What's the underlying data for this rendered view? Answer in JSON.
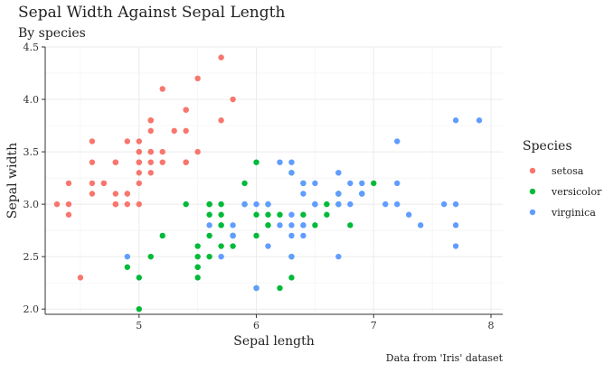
{
  "chart_data": {
    "type": "scatter",
    "title": "Sepal Width Against Sepal Length",
    "subtitle": "By species",
    "caption": "Data from 'Iris' dataset",
    "xlabel": "Sepal length",
    "ylabel": "Sepal width",
    "xlim": [
      4.2,
      8.1
    ],
    "ylim": [
      1.95,
      4.5
    ],
    "xticks": [
      5,
      6,
      7,
      8
    ],
    "yticks": [
      2.0,
      2.5,
      3.0,
      3.5,
      4.0,
      4.5
    ],
    "ytick_labels": [
      "2.0",
      "2.5",
      "3.0",
      "3.5",
      "4.0",
      "4.5"
    ],
    "grid": true,
    "legend_title": "Species",
    "legend_position": "right",
    "series": [
      {
        "name": "setosa",
        "color": "#F8766D",
        "x": [
          5.1,
          4.9,
          4.7,
          4.6,
          5.0,
          5.4,
          4.6,
          5.0,
          4.4,
          4.9,
          5.4,
          4.8,
          4.8,
          4.3,
          5.8,
          5.7,
          5.4,
          5.1,
          5.7,
          5.1,
          5.4,
          5.1,
          4.6,
          5.1,
          4.8,
          5.0,
          5.0,
          5.2,
          5.2,
          4.7,
          4.8,
          5.4,
          5.2,
          5.5,
          4.9,
          5.0,
          5.5,
          4.9,
          4.4,
          5.1,
          5.0,
          4.5,
          4.4,
          5.0,
          5.1,
          4.8,
          5.1,
          4.6,
          5.3,
          5.0
        ],
        "y": [
          3.5,
          3.0,
          3.2,
          3.1,
          3.6,
          3.9,
          3.4,
          3.4,
          2.9,
          3.1,
          3.7,
          3.4,
          3.0,
          3.0,
          4.0,
          4.4,
          3.9,
          3.5,
          3.8,
          3.8,
          3.4,
          3.7,
          3.6,
          3.3,
          3.4,
          3.0,
          3.4,
          3.5,
          3.4,
          3.2,
          3.1,
          3.4,
          4.1,
          4.2,
          3.1,
          3.2,
          3.5,
          3.6,
          3.0,
          3.4,
          3.5,
          2.3,
          3.2,
          3.5,
          3.8,
          3.0,
          3.8,
          3.2,
          3.7,
          3.3
        ]
      },
      {
        "name": "versicolor",
        "color": "#00BA38",
        "x": [
          7.0,
          6.4,
          6.9,
          5.5,
          6.5,
          5.7,
          6.3,
          4.9,
          6.6,
          5.2,
          5.0,
          5.9,
          6.0,
          6.1,
          5.6,
          6.7,
          5.6,
          5.8,
          6.2,
          5.6,
          5.9,
          6.1,
          6.3,
          6.1,
          6.4,
          6.6,
          6.8,
          6.7,
          6.0,
          5.7,
          5.5,
          5.5,
          5.8,
          6.0,
          5.4,
          6.0,
          6.7,
          6.3,
          5.6,
          5.5,
          5.5,
          6.1,
          5.8,
          5.0,
          5.6,
          5.7,
          5.7,
          6.2,
          5.1,
          5.7
        ],
        "y": [
          3.2,
          3.2,
          3.1,
          2.3,
          2.8,
          2.8,
          3.3,
          2.4,
          2.9,
          2.7,
          2.0,
          3.0,
          2.2,
          2.9,
          2.9,
          3.1,
          3.0,
          2.7,
          2.2,
          2.5,
          3.2,
          2.8,
          2.5,
          2.8,
          2.9,
          3.0,
          2.8,
          3.0,
          2.9,
          2.6,
          2.4,
          2.4,
          2.7,
          2.7,
          3.0,
          3.4,
          3.1,
          2.3,
          3.0,
          2.5,
          2.6,
          3.0,
          2.6,
          2.3,
          2.7,
          3.0,
          2.9,
          2.9,
          2.5,
          2.8
        ]
      },
      {
        "name": "virginica",
        "color": "#619CFF",
        "x": [
          6.3,
          5.8,
          7.1,
          6.3,
          6.5,
          7.6,
          4.9,
          7.3,
          6.7,
          7.2,
          6.5,
          6.4,
          6.8,
          5.7,
          5.8,
          6.4,
          6.5,
          7.7,
          7.7,
          6.0,
          6.9,
          5.6,
          7.7,
          6.3,
          6.7,
          7.2,
          6.2,
          6.1,
          6.4,
          7.2,
          7.4,
          7.9,
          6.4,
          6.3,
          6.1,
          7.7,
          6.3,
          6.4,
          6.0,
          6.9,
          6.7,
          6.9,
          5.8,
          6.8,
          6.7,
          6.7,
          6.3,
          6.5,
          6.2,
          5.9
        ],
        "y": [
          3.3,
          2.7,
          3.0,
          2.9,
          3.0,
          3.0,
          2.5,
          2.9,
          2.5,
          3.6,
          3.2,
          2.7,
          3.0,
          2.5,
          2.8,
          3.2,
          3.0,
          3.8,
          2.6,
          2.2,
          3.2,
          2.8,
          2.8,
          2.7,
          3.3,
          3.2,
          2.8,
          3.0,
          2.8,
          3.0,
          2.8,
          3.8,
          2.8,
          2.8,
          2.6,
          3.0,
          3.4,
          3.1,
          3.0,
          3.1,
          3.1,
          3.1,
          2.7,
          3.2,
          3.3,
          3.0,
          2.5,
          3.0,
          3.4,
          3.0
        ]
      }
    ]
  }
}
